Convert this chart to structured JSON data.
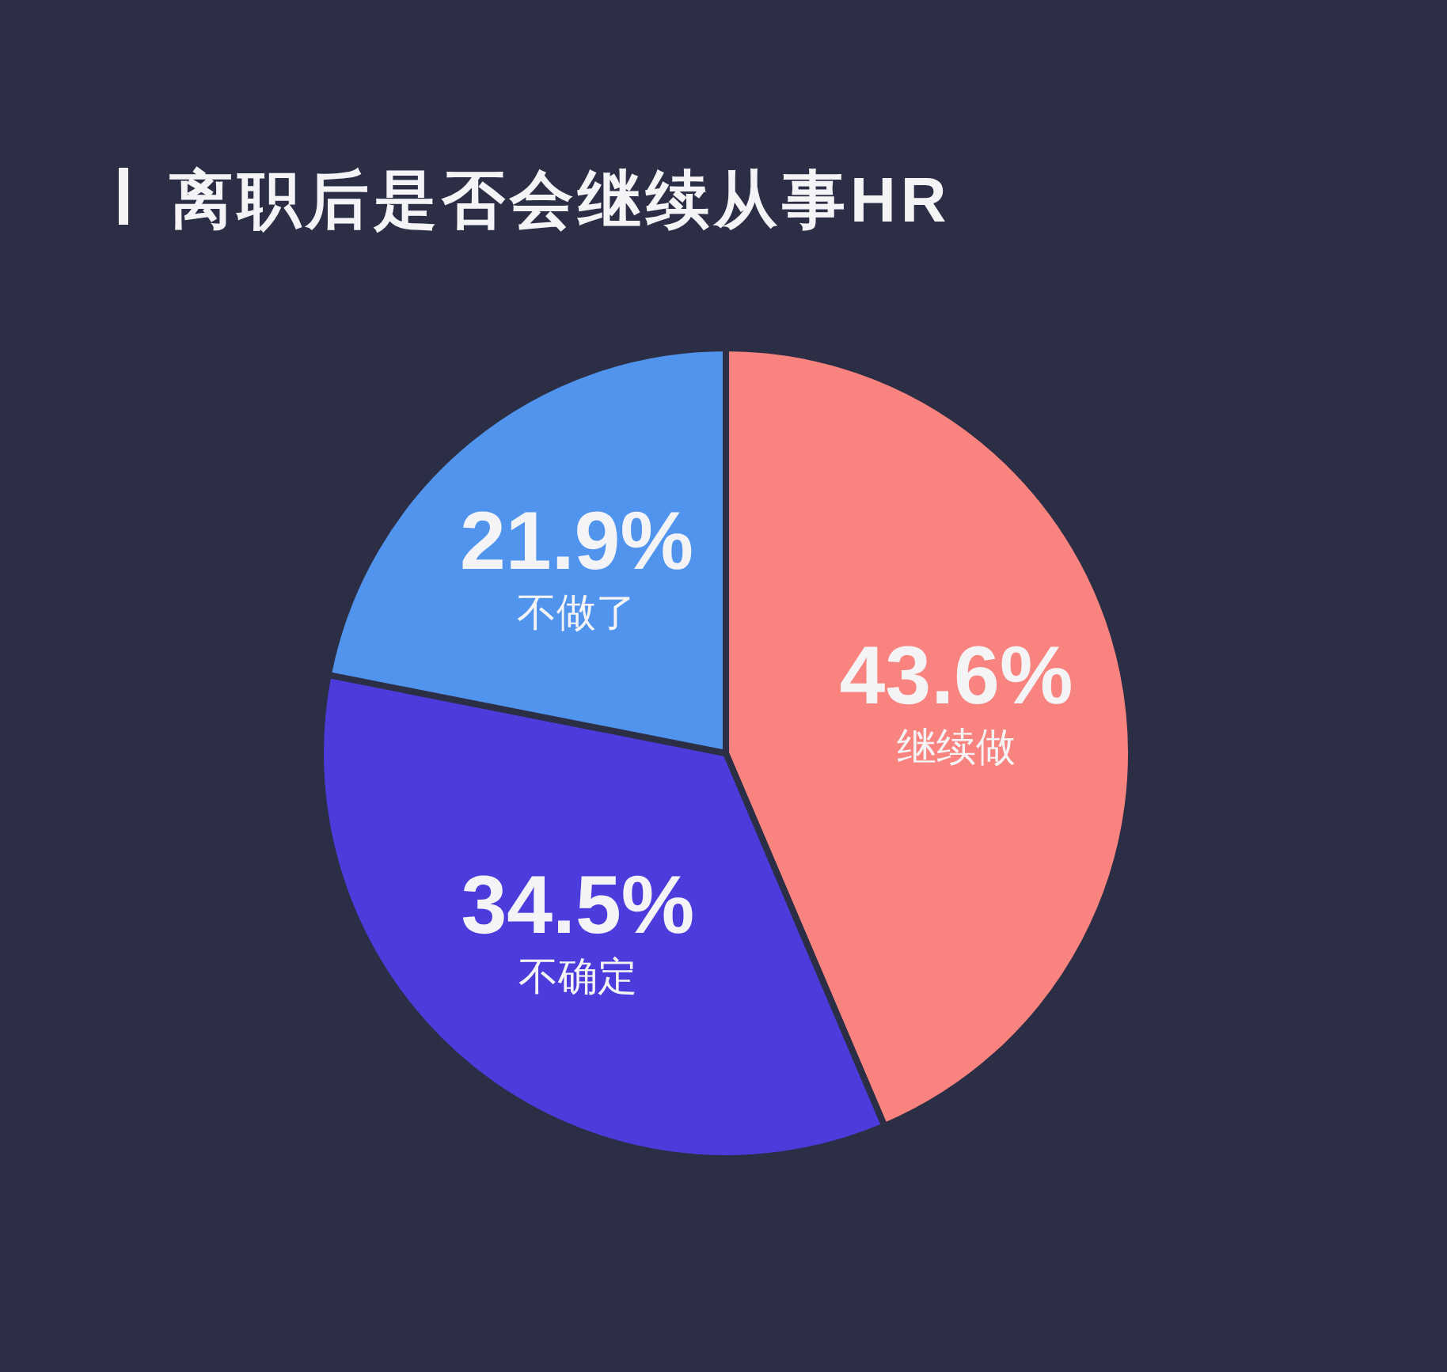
{
  "chart_data": {
    "type": "pie",
    "title": "离职后是否会继续从事HR",
    "categories": [
      "继续做",
      "不确定",
      "不做了"
    ],
    "values": [
      43.6,
      34.5,
      21.9
    ],
    "value_labels": [
      "43.6%",
      "34.5%",
      "21.9%"
    ],
    "colors": [
      "#f8837f",
      "#4c3cdc",
      "#5194ee"
    ]
  }
}
